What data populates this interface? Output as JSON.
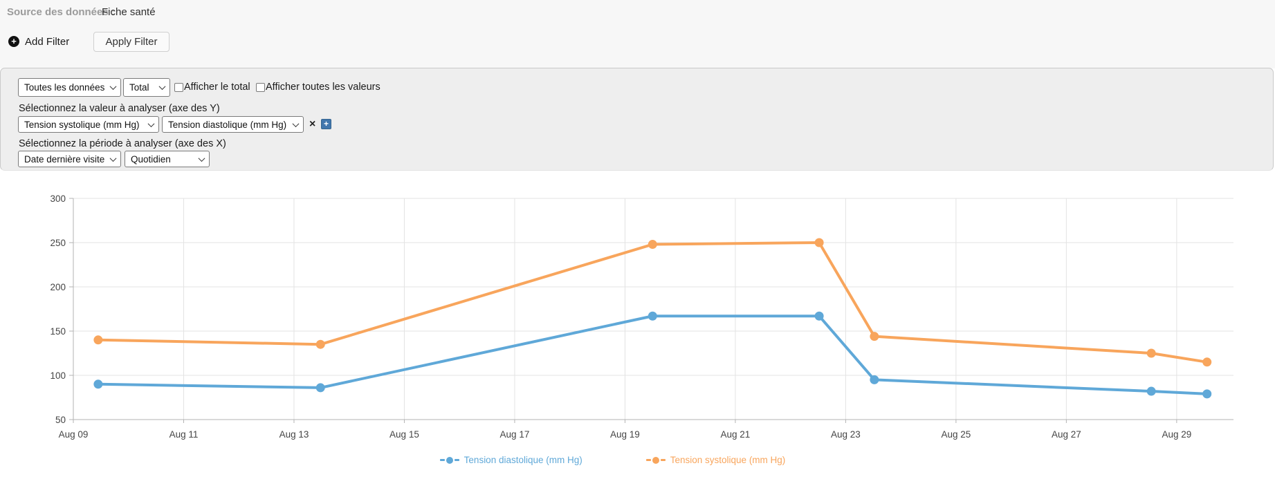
{
  "header": {
    "source_label": "Source des données :",
    "source_value": "Fiche santé",
    "add_filter_label": "Add Filter",
    "apply_filter_label": "Apply Filter"
  },
  "icons": {
    "add_filter_plus": "+",
    "remove_series": "×",
    "add_series": "+"
  },
  "filter_panel": {
    "data_scope_select_value": "Toutes les données",
    "aggregation_select_value": "Total",
    "show_total_checkbox_label": "Afficher le total",
    "show_all_values_checkbox_label": "Afficher toutes les valeurs",
    "show_total_checked": false,
    "show_all_values_checked": false,
    "y_axis_section_label": "Sélectionnez la valeur à analyser (axe des Y)",
    "y_value_select_1_value": "Tension systolique (mm Hg)",
    "y_value_select_2_value": "Tension diastolique (mm Hg)",
    "x_axis_section_label": "Sélectionnez la période à analyser (axe des X)",
    "x_period_select_value": "Date dernière visite",
    "x_interval_select_value": "Quotidien"
  },
  "chart_data": {
    "type": "line",
    "title": "",
    "xlabel": "",
    "ylabel": "",
    "grid": true,
    "x_axis": {
      "unit": "date",
      "xlim_days": [
        0,
        21.03
      ],
      "tick_days": [
        0,
        2,
        4,
        6,
        8,
        10,
        12,
        14,
        16,
        18,
        20
      ],
      "tick_labels": [
        "Aug 09",
        "Aug 11",
        "Aug 13",
        "Aug 15",
        "Aug 17",
        "Aug 19",
        "Aug 21",
        "Aug 23",
        "Aug 25",
        "Aug 27",
        "Aug 29"
      ]
    },
    "y_axis": {
      "ylim": [
        50,
        300
      ],
      "ticks": [
        50,
        100,
        150,
        200,
        250,
        300
      ]
    },
    "points_x_days": [
      0.45,
      4.48,
      10.5,
      13.52,
      14.52,
      19.54,
      20.55
    ],
    "points_dates": [
      "Aug 09",
      "Aug 13",
      "Aug 19",
      "Aug 22",
      "Aug 23",
      "Aug 28",
      "Aug 29"
    ],
    "series": [
      {
        "name": "Tension systolique (mm Hg)",
        "color": "#f8a55c",
        "values": [
          140,
          135,
          248,
          250,
          144,
          125,
          115
        ]
      },
      {
        "name": "Tension diastolique (mm Hg)",
        "color": "#5fa8d8",
        "values": [
          90,
          86,
          167,
          167,
          95,
          82,
          79
        ]
      }
    ],
    "legend": {
      "position": "bottom",
      "items": [
        {
          "label": "Tension diastolique (mm Hg)",
          "color": "#5fa8d8"
        },
        {
          "label": "Tension systolique (mm Hg)",
          "color": "#f8a55c"
        }
      ]
    },
    "style": {
      "grid_color": "#e3e3e3",
      "axis_color": "#b3b3b3",
      "tick_label_color": "#444444"
    }
  }
}
